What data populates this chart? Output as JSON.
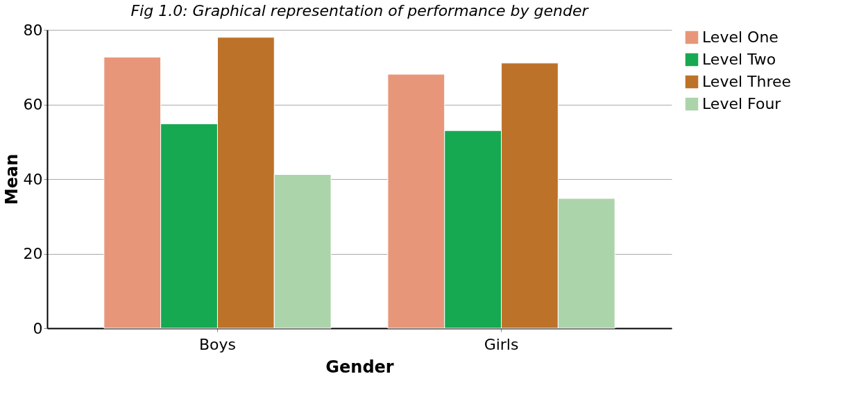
{
  "chart_data": {
    "type": "bar",
    "title": "Fig 1.0: Graphical representation of performance by gender",
    "xlabel": "Gender",
    "ylabel": "Mean",
    "categories": [
      "Boys",
      "Girls"
    ],
    "series": [
      {
        "name": "Level One",
        "color": "#e8967a",
        "values": [
          72.7,
          68.1
        ]
      },
      {
        "name": "Level Two",
        "color": "#17a852",
        "values": [
          54.8,
          53.0
        ]
      },
      {
        "name": "Level Three",
        "color": "#bd7229",
        "values": [
          78.0,
          71.1
        ]
      },
      {
        "name": "Level Four",
        "color": "#acd4aa",
        "values": [
          41.2,
          34.8
        ]
      }
    ],
    "ylim": [
      0,
      80
    ],
    "yticks": [
      0,
      20,
      40,
      60,
      80
    ],
    "grid": "y",
    "legend": "right"
  }
}
